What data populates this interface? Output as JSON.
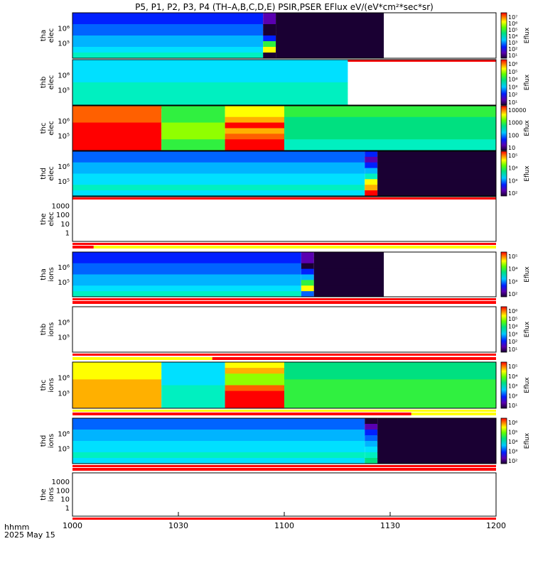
{
  "chart_data": {
    "type": "heatmap",
    "title": "P5, P1, P2, P3, P4 (TH–A,B,C,D,E) PSIR,PSER EFlux eV/(eV*cm²*sec*sr)",
    "xlabel_line1": "hhmm",
    "xlabel_line2": "2025 May 15",
    "x_ticks": [
      "1000",
      "1030",
      "1100",
      "1130",
      "1200"
    ],
    "xlim": [
      "10:00",
      "12:00"
    ],
    "colorbar_label": "Eflux",
    "panels": [
      {
        "name": "tha-elec",
        "ylabel1": "tha",
        "ylabel2": "elec",
        "yticks": [
          "10⁶",
          "10⁵"
        ],
        "cbar_ticks": [
          "10⁷",
          "10⁶",
          "10⁵",
          "10⁴",
          "10³",
          "10²",
          "10¹"
        ],
        "data_end_time": "11:28"
      },
      {
        "name": "thb-elec",
        "ylabel1": "thb",
        "ylabel2": "elec",
        "yticks": [
          "10⁶",
          "10⁵"
        ],
        "cbar_ticks": [
          "10⁶",
          "10⁵",
          "10⁴",
          "10³",
          "10²",
          "10¹"
        ],
        "data_end_time": "11:18"
      },
      {
        "name": "thc-elec",
        "ylabel1": "thc",
        "ylabel2": "elec",
        "yticks": [
          "10⁶",
          "10⁵"
        ],
        "cbar_ticks": [
          "10000",
          "1000",
          "100",
          "10"
        ],
        "data_end_time": "12:00"
      },
      {
        "name": "thd-elec",
        "ylabel1": "thd",
        "ylabel2": "elec",
        "yticks": [
          "10⁶",
          "10⁵"
        ],
        "cbar_ticks": [
          "10⁵",
          "10⁴",
          "10³",
          "10²"
        ],
        "data_end_time": "12:00"
      },
      {
        "name": "the-elec",
        "ylabel1": "the",
        "ylabel2": "elec",
        "yticks": [
          "1000",
          "100",
          "10",
          "1"
        ],
        "cbar_ticks": [],
        "data_end_time": "none"
      },
      {
        "name": "tha-ions",
        "ylabel1": "tha",
        "ylabel2": "ions",
        "yticks": [
          "10⁶",
          "10⁵"
        ],
        "cbar_ticks": [
          "10⁵",
          "10⁴",
          "10³",
          "10²"
        ],
        "data_end_time": "11:28"
      },
      {
        "name": "thb-ions",
        "ylabel1": "thb",
        "ylabel2": "ions",
        "yticks": [
          "10⁶",
          "10⁵"
        ],
        "cbar_ticks": [
          "10⁶",
          "10⁵",
          "10⁴",
          "10³",
          "10²",
          "10¹"
        ],
        "data_end_time": "none"
      },
      {
        "name": "thc-ions",
        "ylabel1": "thc",
        "ylabel2": "ions",
        "yticks": [
          "10⁶",
          "10⁵"
        ],
        "cbar_ticks": [
          "10⁵",
          "10⁴",
          "10³",
          "10²",
          "10¹"
        ],
        "data_end_time": "12:00"
      },
      {
        "name": "thd-ions",
        "ylabel1": "thd",
        "ylabel2": "ions",
        "yticks": [
          "10⁶",
          "10⁵"
        ],
        "cbar_ticks": [
          "10⁶",
          "10⁵",
          "10⁴",
          "10³",
          "10²"
        ],
        "data_end_time": "12:00"
      },
      {
        "name": "the-ions",
        "ylabel1": "the",
        "ylabel2": "ions",
        "yticks": [
          "1000",
          "100",
          "10",
          "1"
        ],
        "cbar_ticks": [],
        "data_end_time": "none"
      }
    ]
  }
}
